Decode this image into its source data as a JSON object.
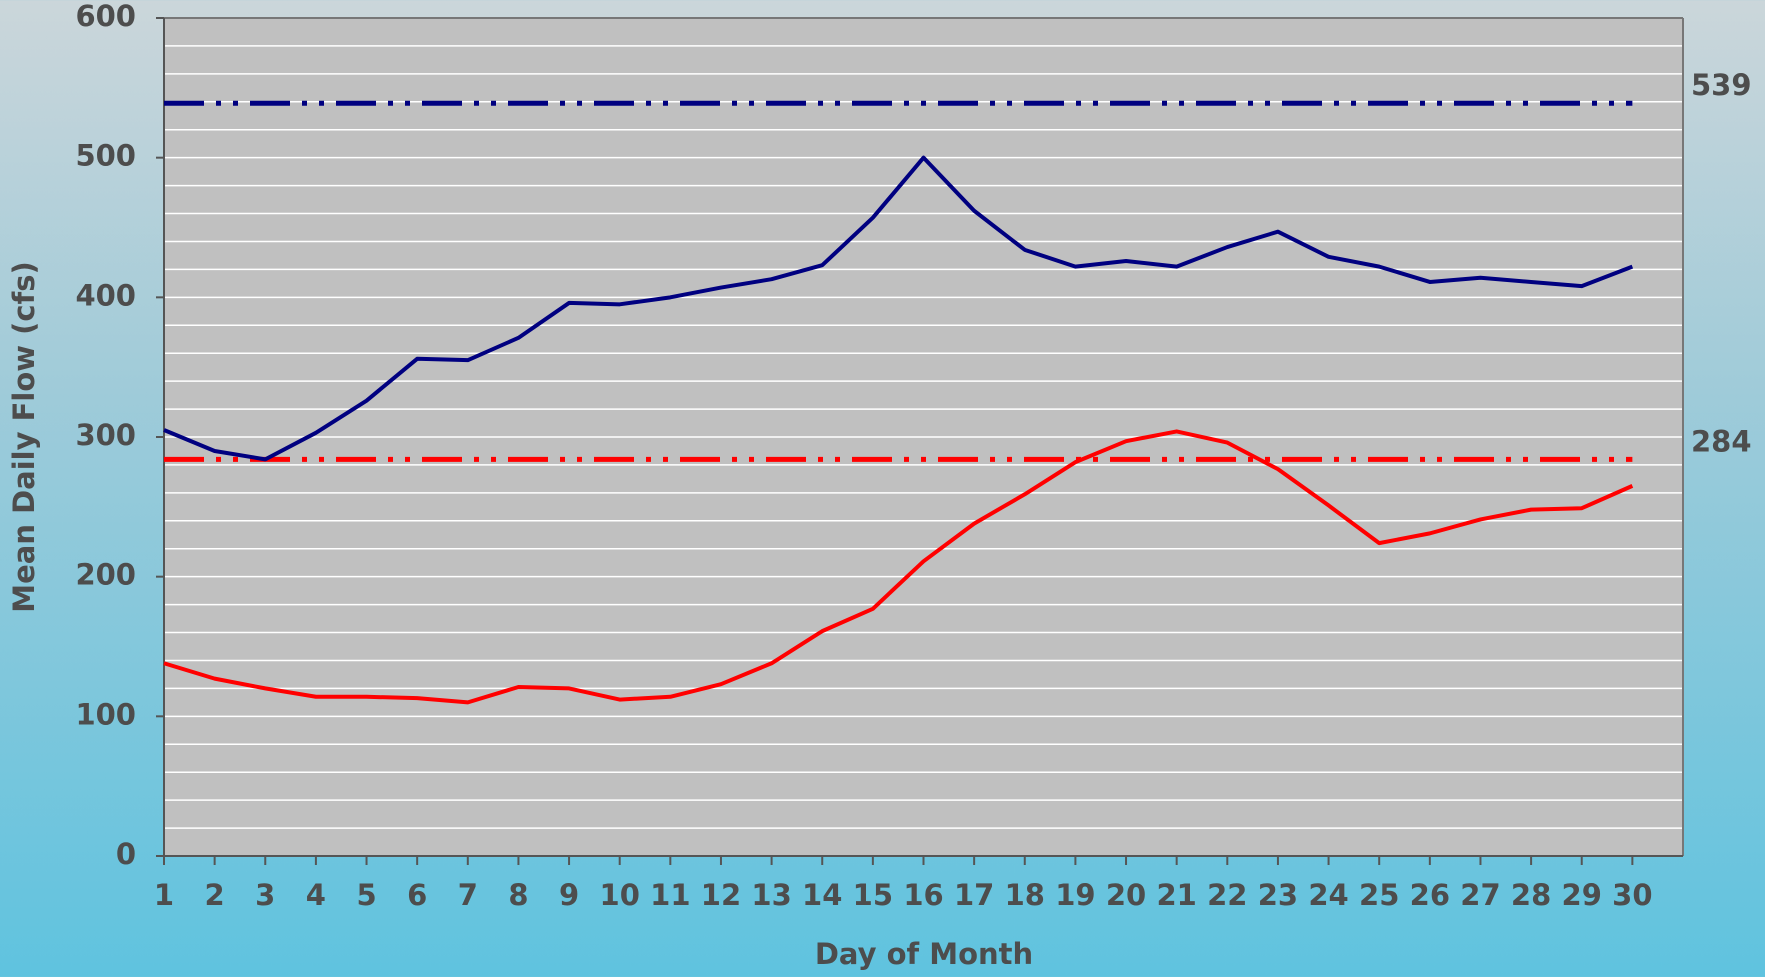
{
  "chart_data": {
    "type": "line",
    "x_label": "Day of Month",
    "y_label": "Mean Daily Flow (cfs)",
    "x": [
      1,
      2,
      3,
      4,
      5,
      6,
      7,
      8,
      9,
      10,
      11,
      12,
      13,
      14,
      15,
      16,
      17,
      18,
      19,
      20,
      21,
      22,
      23,
      24,
      25,
      26,
      27,
      28,
      29,
      30
    ],
    "series": [
      {
        "color": "#000080",
        "values": [
          305,
          290,
          284,
          303,
          326,
          356,
          355,
          371,
          396,
          395,
          400,
          407,
          413,
          423,
          457,
          500,
          462,
          434,
          422,
          426,
          422,
          436,
          447,
          429,
          422,
          411,
          414,
          411,
          408,
          422
        ]
      },
      {
        "color": "#ff0000",
        "values": [
          138,
          127,
          120,
          114,
          114,
          113,
          110,
          121,
          120,
          112,
          114,
          123,
          138,
          161,
          177,
          211,
          238,
          259,
          282,
          297,
          304,
          296,
          277,
          251,
          224,
          231,
          241,
          248,
          249,
          265
        ]
      }
    ],
    "reference_lines": [
      {
        "value": 539,
        "color": "#000080"
      },
      {
        "value": 284,
        "color": "#ff0000"
      }
    ],
    "xlim": [
      1,
      31
    ],
    "xticks": [
      1,
      2,
      3,
      4,
      5,
      6,
      7,
      8,
      9,
      10,
      11,
      12,
      13,
      14,
      15,
      16,
      17,
      18,
      19,
      20,
      21,
      22,
      23,
      24,
      25,
      26,
      27,
      28,
      29,
      30
    ],
    "ylim": [
      0,
      600
    ],
    "yticks": [
      0,
      100,
      200,
      300,
      400,
      500,
      600
    ],
    "grid": true,
    "minor_grid_per_major": 5
  }
}
